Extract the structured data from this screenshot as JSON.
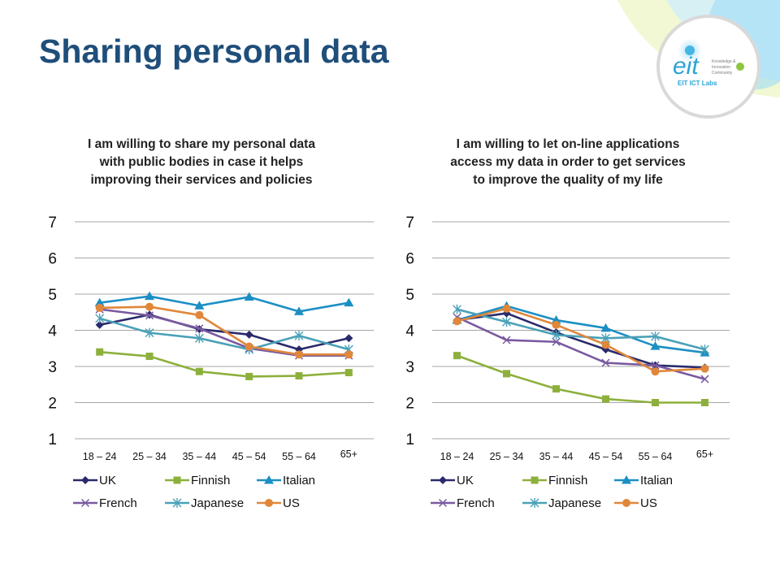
{
  "slide": {
    "title": "Sharing personal data",
    "logo": {
      "brand": "eit",
      "subtitle": "EIT ICT Labs",
      "tagline": [
        "Knowledge &",
        "Innovation",
        "Community"
      ],
      "accent_color": "#2aa4d5"
    }
  },
  "colors": {
    "UK": "#2a2a6b",
    "Finnish": "#8db03c",
    "Italian": "#1b8fc4",
    "French": "#7a5aa0",
    "Japanese": "#4aa1b8",
    "US": "#e0873a",
    "title": "#1f4e7a",
    "grid": "#a6a6a6"
  },
  "chart_data": [
    {
      "type": "line",
      "title": "I am willing to share my personal data with public bodies in case it helps improving their services and policies",
      "categories": [
        "18 – 24",
        "25 – 34",
        "35 – 44",
        "45 – 54",
        "55 – 64",
        "65+"
      ],
      "ylim": [
        1,
        7
      ],
      "yticks": [
        1,
        2,
        3,
        4,
        5,
        6,
        7
      ],
      "grid": true,
      "legend_position": "bottom",
      "xlabel": "",
      "ylabel": "",
      "series": [
        {
          "name": "UK",
          "marker": "diamond",
          "values": [
            4.15,
            4.43,
            4.03,
            3.88,
            3.47,
            3.78
          ]
        },
        {
          "name": "Finnish",
          "marker": "square",
          "values": [
            3.4,
            3.28,
            2.86,
            2.72,
            2.74,
            2.83
          ]
        },
        {
          "name": "Italian",
          "marker": "triangle",
          "values": [
            4.76,
            4.94,
            4.68,
            4.92,
            4.52,
            4.76
          ]
        },
        {
          "name": "French",
          "marker": "x",
          "values": [
            4.58,
            4.41,
            4.05,
            3.5,
            3.3,
            3.3
          ]
        },
        {
          "name": "Japanese",
          "marker": "asterisk",
          "values": [
            4.33,
            3.93,
            3.78,
            3.47,
            3.85,
            3.47
          ]
        },
        {
          "name": "US",
          "marker": "circle",
          "values": [
            4.62,
            4.65,
            4.42,
            3.55,
            3.33,
            3.33
          ]
        }
      ]
    },
    {
      "type": "line",
      "title": "I am willing to let on-line applications access my data in order to get services to improve the quality of my life",
      "categories": [
        "18 – 24",
        "25 – 34",
        "35 – 44",
        "45 – 54",
        "55 – 64",
        "65+"
      ],
      "ylim": [
        1,
        7
      ],
      "yticks": [
        1,
        2,
        3,
        4,
        5,
        6,
        7
      ],
      "grid": true,
      "legend_position": "bottom",
      "xlabel": "",
      "ylabel": "",
      "series": [
        {
          "name": "UK",
          "marker": "diamond",
          "values": [
            4.28,
            4.47,
            3.94,
            3.47,
            3.03,
            2.97
          ]
        },
        {
          "name": "Finnish",
          "marker": "square",
          "values": [
            3.3,
            2.8,
            2.38,
            2.1,
            2.0,
            2.0
          ]
        },
        {
          "name": "Italian",
          "marker": "triangle",
          "values": [
            4.28,
            4.67,
            4.28,
            4.06,
            3.56,
            3.38
          ]
        },
        {
          "name": "French",
          "marker": "x",
          "values": [
            4.36,
            3.73,
            3.68,
            3.1,
            3.03,
            2.65
          ]
        },
        {
          "name": "Japanese",
          "marker": "asterisk",
          "values": [
            4.58,
            4.23,
            3.87,
            3.78,
            3.83,
            3.47
          ]
        },
        {
          "name": "US",
          "marker": "circle",
          "values": [
            4.25,
            4.6,
            4.15,
            3.6,
            2.86,
            2.94
          ]
        }
      ]
    }
  ]
}
